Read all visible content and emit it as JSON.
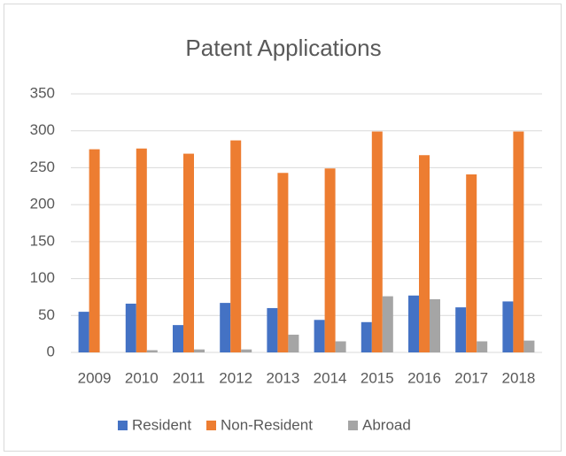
{
  "chart_data": {
    "type": "bar",
    "title": "Patent Applications",
    "categories": [
      "2009",
      "2010",
      "2011",
      "2012",
      "2013",
      "2014",
      "2015",
      "2016",
      "2017",
      "2018"
    ],
    "series": [
      {
        "name": "Resident",
        "color": "#4472c4",
        "values": [
          55,
          66,
          37,
          67,
          60,
          44,
          41,
          77,
          61,
          69
        ]
      },
      {
        "name": "Non-Resident",
        "color": "#ed7d31",
        "values": [
          275,
          276,
          269,
          287,
          243,
          249,
          299,
          267,
          241,
          299
        ]
      },
      {
        "name": "Abroad",
        "color": "#a5a5a5",
        "values": [
          0,
          3,
          4,
          4,
          24,
          15,
          76,
          72,
          15,
          16
        ]
      }
    ],
    "ylim": [
      0,
      350
    ],
    "yticks": [
      0,
      50,
      100,
      150,
      200,
      250,
      300,
      350
    ],
    "grid": true,
    "legend": "bottom"
  }
}
